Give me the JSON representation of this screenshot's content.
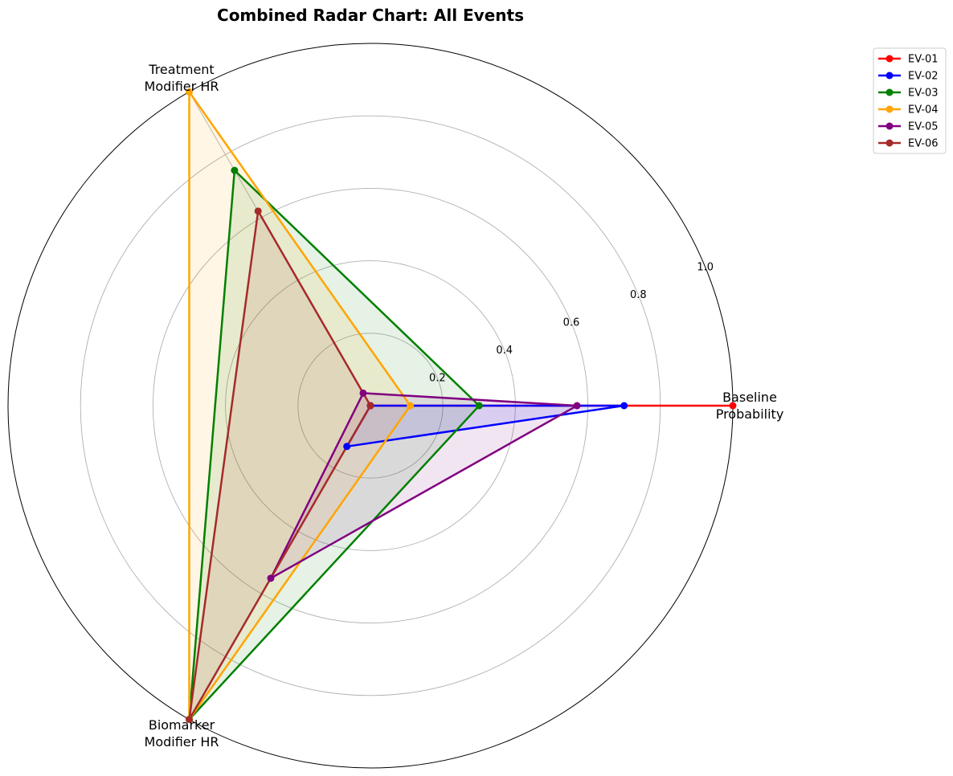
{
  "chart_data": {
    "type": "radar",
    "title": "Combined Radar Chart: All Events",
    "axes": [
      [
        "Baseline",
        "Probability"
      ],
      [
        "Treatment",
        "Modifier HR"
      ],
      [
        "Biomarker",
        "Modifier HR"
      ]
    ],
    "radial_ticks": [
      "0.2",
      "0.4",
      "0.6",
      "0.8",
      "1.0"
    ],
    "radial_tick_values": [
      0.2,
      0.4,
      0.6,
      0.8,
      1.0
    ],
    "rlim": [
      0,
      1.0
    ],
    "grid": true,
    "legend_position": "top-right",
    "series": [
      {
        "name": "EV-01",
        "color": "#ff0000",
        "values": [
          1.0,
          0.0,
          0.0
        ]
      },
      {
        "name": "EV-02",
        "color": "#0000ff",
        "values": [
          0.7,
          0.0,
          0.13
        ]
      },
      {
        "name": "EV-03",
        "color": "#008000",
        "values": [
          0.3,
          0.75,
          1.0
        ]
      },
      {
        "name": "EV-04",
        "color": "#ffa500",
        "values": [
          0.11,
          1.0,
          1.0
        ]
      },
      {
        "name": "EV-05",
        "color": "#800080",
        "values": [
          0.57,
          0.04,
          0.55
        ]
      },
      {
        "name": "EV-06",
        "color": "#a52a2a",
        "values": [
          0.0,
          0.62,
          1.0
        ]
      }
    ]
  }
}
